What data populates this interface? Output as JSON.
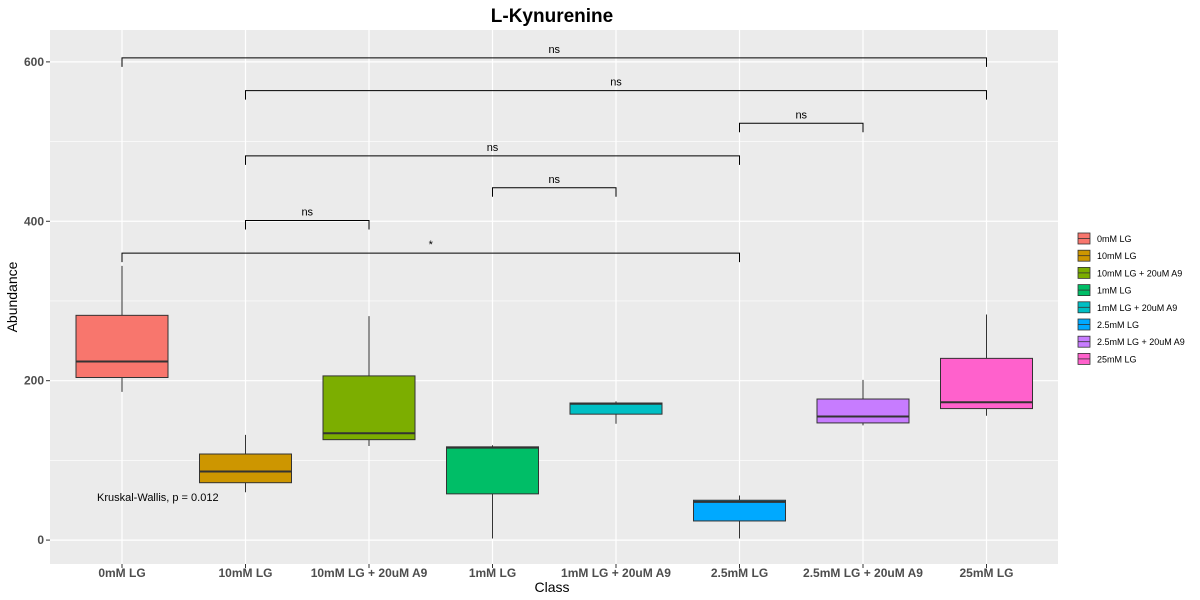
{
  "chart_data": {
    "type": "box",
    "title": "L-Kynurenine",
    "xlabel": "Class",
    "ylabel": "Abundance",
    "ylim": [
      -30,
      640
    ],
    "yticks": [
      0,
      200,
      400,
      600
    ],
    "grid": true,
    "legend": "right",
    "categories": [
      "0mM LG",
      "10mM LG",
      "10mM LG + 20uM A9",
      "1mM LG",
      "1mM LG + 20uM A9",
      "2.5mM LG",
      "2.5mM LG + 20uM A9",
      "25mM LG"
    ],
    "colors": [
      "#F8766D",
      "#CD9600",
      "#7CAE00",
      "#00BE67",
      "#00BFC4",
      "#00A9FF",
      "#C77CFF",
      "#FF61CC"
    ],
    "boxes": [
      {
        "whisker_low": 186,
        "q1": 204,
        "median": 224,
        "q3": 282,
        "whisker_high": 344
      },
      {
        "whisker_low": 60,
        "q1": 72,
        "median": 86,
        "q3": 108,
        "whisker_high": 132
      },
      {
        "whisker_low": 118,
        "q1": 126,
        "median": 134,
        "q3": 206,
        "whisker_high": 281
      },
      {
        "whisker_low": 2,
        "q1": 58,
        "median": 116,
        "q3": 117,
        "whisker_high": 119
      },
      {
        "whisker_low": 146,
        "q1": 158,
        "median": 171,
        "q3": 172,
        "whisker_high": 174
      },
      {
        "whisker_low": 2,
        "q1": 24,
        "median": 48,
        "q3": 50,
        "whisker_high": 56
      },
      {
        "whisker_low": 144,
        "q1": 147,
        "median": 155,
        "q3": 177,
        "whisker_high": 201
      },
      {
        "whisker_low": 156,
        "q1": 165,
        "median": 173,
        "q3": 228,
        "whisker_high": 283
      }
    ],
    "comparisons": [
      {
        "from": 0,
        "to": 7,
        "y": 605,
        "label": "ns"
      },
      {
        "from": 1,
        "to": 7,
        "y": 564,
        "label": "ns"
      },
      {
        "from": 5,
        "to": 6,
        "y": 523,
        "label": "ns"
      },
      {
        "from": 1,
        "to": 5,
        "y": 482,
        "label": "ns"
      },
      {
        "from": 3,
        "to": 4,
        "y": 442,
        "label": "ns"
      },
      {
        "from": 1,
        "to": 2,
        "y": 401,
        "label": "ns"
      },
      {
        "from": 0,
        "to": 5,
        "y": 360,
        "label": "*"
      }
    ],
    "annotation": "Kruskal-Wallis, p = 0.012"
  }
}
